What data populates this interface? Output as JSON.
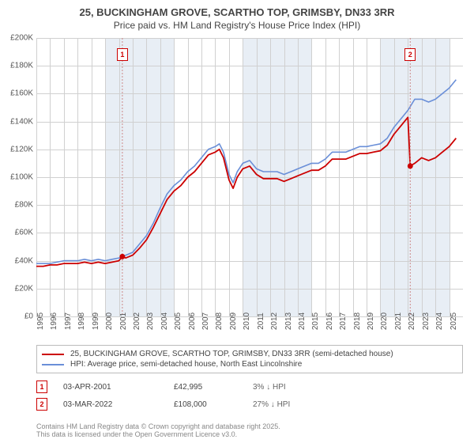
{
  "title_main": "25, BUCKINGHAM GROVE, SCARTHO TOP, GRIMSBY, DN33 3RR",
  "title_sub": "Price paid vs. HM Land Registry's House Price Index (HPI)",
  "chart": {
    "type": "line",
    "x_start_year": 1995,
    "x_end_year": 2026,
    "x_ticks": [
      1995,
      1996,
      1997,
      1998,
      1999,
      2000,
      2001,
      2002,
      2003,
      2004,
      2005,
      2006,
      2007,
      2008,
      2009,
      2010,
      2011,
      2012,
      2013,
      2014,
      2015,
      2016,
      2017,
      2018,
      2019,
      2020,
      2021,
      2022,
      2023,
      2024,
      2025
    ],
    "ylim": [
      0,
      200000
    ],
    "y_ticks": [
      0,
      20000,
      40000,
      60000,
      80000,
      100000,
      120000,
      140000,
      160000,
      180000,
      200000
    ],
    "y_tick_labels": [
      "£0",
      "£20K",
      "£40K",
      "£60K",
      "£80K",
      "£100K",
      "£120K",
      "£140K",
      "£160K",
      "£180K",
      "£200K"
    ],
    "grid_color": "#d0d0d0",
    "background_color": "#ffffff",
    "background_alternate_color": "#e8eef5",
    "series": [
      {
        "name": "hpi",
        "legend": "HPI: Average price, semi-detached house, North East Lincolnshire",
        "color": "#6a8fd8",
        "line_width": 1.6,
        "data": [
          [
            1995.0,
            38
          ],
          [
            1995.5,
            38
          ],
          [
            1996.0,
            38
          ],
          [
            1996.5,
            39
          ],
          [
            1997.0,
            40
          ],
          [
            1997.5,
            40
          ],
          [
            1998.0,
            40
          ],
          [
            1998.5,
            41
          ],
          [
            1999.0,
            40
          ],
          [
            1999.5,
            41
          ],
          [
            2000.0,
            40
          ],
          [
            2000.5,
            41
          ],
          [
            2001.0,
            42
          ],
          [
            2001.5,
            44
          ],
          [
            2002.0,
            46
          ],
          [
            2002.5,
            52
          ],
          [
            2003.0,
            58
          ],
          [
            2003.5,
            67
          ],
          [
            2004.0,
            78
          ],
          [
            2004.5,
            88
          ],
          [
            2005.0,
            94
          ],
          [
            2005.5,
            98
          ],
          [
            2006.0,
            104
          ],
          [
            2006.5,
            108
          ],
          [
            2007.0,
            114
          ],
          [
            2007.5,
            120
          ],
          [
            2008.0,
            122
          ],
          [
            2008.3,
            124
          ],
          [
            2008.6,
            118
          ],
          [
            2009.0,
            102
          ],
          [
            2009.3,
            96
          ],
          [
            2009.6,
            104
          ],
          [
            2010.0,
            110
          ],
          [
            2010.5,
            112
          ],
          [
            2011.0,
            106
          ],
          [
            2011.5,
            104
          ],
          [
            2012.0,
            104
          ],
          [
            2012.5,
            104
          ],
          [
            2013.0,
            102
          ],
          [
            2013.5,
            104
          ],
          [
            2014.0,
            106
          ],
          [
            2014.5,
            108
          ],
          [
            2015.0,
            110
          ],
          [
            2015.5,
            110
          ],
          [
            2016.0,
            113
          ],
          [
            2016.5,
            118
          ],
          [
            2017.0,
            118
          ],
          [
            2017.5,
            118
          ],
          [
            2018.0,
            120
          ],
          [
            2018.5,
            122
          ],
          [
            2019.0,
            122
          ],
          [
            2019.5,
            123
          ],
          [
            2020.0,
            124
          ],
          [
            2020.5,
            128
          ],
          [
            2021.0,
            136
          ],
          [
            2021.5,
            142
          ],
          [
            2022.0,
            148
          ],
          [
            2022.5,
            156
          ],
          [
            2023.0,
            156
          ],
          [
            2023.5,
            154
          ],
          [
            2024.0,
            156
          ],
          [
            2024.5,
            160
          ],
          [
            2025.0,
            164
          ],
          [
            2025.5,
            170
          ]
        ]
      },
      {
        "name": "price_paid",
        "legend": "25, BUCKINGHAM GROVE, SCARTHO TOP, GRIMSBY, DN33 3RR (semi-detached house)",
        "color": "#cc0000",
        "line_width": 1.8,
        "data": [
          [
            1995.0,
            36
          ],
          [
            1995.5,
            36
          ],
          [
            1996.0,
            37
          ],
          [
            1996.5,
            37
          ],
          [
            1997.0,
            38
          ],
          [
            1997.5,
            38
          ],
          [
            1998.0,
            38
          ],
          [
            1998.5,
            39
          ],
          [
            1999.0,
            38
          ],
          [
            1999.5,
            39
          ],
          [
            2000.0,
            38
          ],
          [
            2000.5,
            39
          ],
          [
            2001.0,
            40
          ],
          [
            2001.25,
            43
          ],
          [
            2001.5,
            42
          ],
          [
            2002.0,
            44
          ],
          [
            2002.5,
            49
          ],
          [
            2003.0,
            55
          ],
          [
            2003.5,
            64
          ],
          [
            2004.0,
            74
          ],
          [
            2004.5,
            84
          ],
          [
            2005.0,
            90
          ],
          [
            2005.5,
            94
          ],
          [
            2006.0,
            100
          ],
          [
            2006.5,
            104
          ],
          [
            2007.0,
            110
          ],
          [
            2007.5,
            116
          ],
          [
            2008.0,
            118
          ],
          [
            2008.3,
            120
          ],
          [
            2008.6,
            114
          ],
          [
            2009.0,
            98
          ],
          [
            2009.3,
            92
          ],
          [
            2009.6,
            100
          ],
          [
            2010.0,
            106
          ],
          [
            2010.5,
            108
          ],
          [
            2011.0,
            102
          ],
          [
            2011.5,
            99
          ],
          [
            2012.0,
            99
          ],
          [
            2012.5,
            99
          ],
          [
            2013.0,
            97
          ],
          [
            2013.5,
            99
          ],
          [
            2014.0,
            101
          ],
          [
            2014.5,
            103
          ],
          [
            2015.0,
            105
          ],
          [
            2015.5,
            105
          ],
          [
            2016.0,
            108
          ],
          [
            2016.5,
            113
          ],
          [
            2017.0,
            113
          ],
          [
            2017.5,
            113
          ],
          [
            2018.0,
            115
          ],
          [
            2018.5,
            117
          ],
          [
            2019.0,
            117
          ],
          [
            2019.5,
            118
          ],
          [
            2020.0,
            119
          ],
          [
            2020.5,
            123
          ],
          [
            2021.0,
            131
          ],
          [
            2021.5,
            137
          ],
          [
            2022.0,
            143
          ],
          [
            2022.17,
            108
          ],
          [
            2022.5,
            110
          ],
          [
            2023.0,
            114
          ],
          [
            2023.5,
            112
          ],
          [
            2024.0,
            114
          ],
          [
            2024.5,
            118
          ],
          [
            2025.0,
            122
          ],
          [
            2025.5,
            128
          ]
        ]
      }
    ],
    "price_markers": [
      {
        "idx": "1",
        "year": 2001.25,
        "value": 42995,
        "color": "#cc0000"
      },
      {
        "idx": "2",
        "year": 2022.17,
        "value": 108000,
        "color": "#cc0000"
      }
    ]
  },
  "legend_items": [
    {
      "color": "#cc0000",
      "text": "25, BUCKINGHAM GROVE, SCARTHO TOP, GRIMSBY, DN33 3RR (semi-detached house)"
    },
    {
      "color": "#6a8fd8",
      "text": "HPI: Average price, semi-detached house, North East Lincolnshire"
    }
  ],
  "annotations": [
    {
      "idx": "1",
      "date": "03-APR-2001",
      "price": "£42,995",
      "diff": "3% ↓ HPI"
    },
    {
      "idx": "2",
      "date": "03-MAR-2022",
      "price": "£108,000",
      "diff": "27% ↓ HPI"
    }
  ],
  "footer_text": "Contains HM Land Registry data © Crown copyright and database right 2025.\nThis data is licensed under the Open Government Licence v3.0."
}
